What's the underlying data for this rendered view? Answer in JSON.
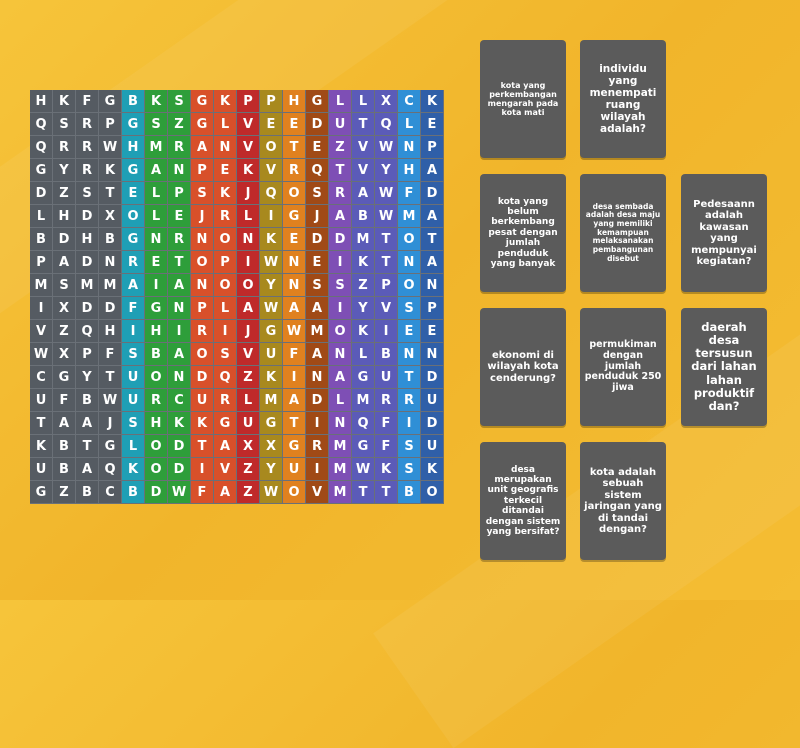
{
  "grid": [
    [
      "H",
      "K",
      "F",
      "G",
      "B",
      "K",
      "S",
      "G",
      "K",
      "P",
      "P",
      "H",
      "G",
      "L",
      "L",
      "X",
      "C",
      "K"
    ],
    [
      "Q",
      "S",
      "R",
      "P",
      "G",
      "S",
      "Z",
      "G",
      "L",
      "V",
      "E",
      "E",
      "D",
      "U",
      "T",
      "Q",
      "L",
      "E"
    ],
    [
      "Q",
      "R",
      "R",
      "W",
      "H",
      "M",
      "R",
      "A",
      "N",
      "V",
      "O",
      "T",
      "E",
      "Z",
      "V",
      "W",
      "N",
      "P"
    ],
    [
      "G",
      "Y",
      "R",
      "K",
      "G",
      "A",
      "N",
      "P",
      "E",
      "K",
      "V",
      "R",
      "Q",
      "T",
      "V",
      "Y",
      "H",
      "A"
    ],
    [
      "D",
      "Z",
      "S",
      "T",
      "E",
      "L",
      "P",
      "S",
      "K",
      "J",
      "Q",
      "O",
      "S",
      "R",
      "A",
      "W",
      "F",
      "D"
    ],
    [
      "L",
      "H",
      "D",
      "X",
      "O",
      "L",
      "E",
      "J",
      "R",
      "L",
      "I",
      "G",
      "J",
      "A",
      "B",
      "W",
      "M",
      "A"
    ],
    [
      "B",
      "D",
      "H",
      "B",
      "G",
      "N",
      "R",
      "N",
      "O",
      "N",
      "K",
      "E",
      "D",
      "D",
      "M",
      "T",
      "O",
      "T"
    ],
    [
      "P",
      "A",
      "D",
      "N",
      "R",
      "E",
      "T",
      "O",
      "P",
      "I",
      "W",
      "N",
      "E",
      "I",
      "K",
      "T",
      "N",
      "A"
    ],
    [
      "M",
      "S",
      "M",
      "M",
      "A",
      "I",
      "A",
      "N",
      "O",
      "O",
      "Y",
      "N",
      "S",
      "S",
      "Z",
      "P",
      "O",
      "N"
    ],
    [
      "I",
      "X",
      "D",
      "D",
      "F",
      "G",
      "N",
      "P",
      "L",
      "A",
      "W",
      "A",
      "A",
      "I",
      "Y",
      "V",
      "S",
      "P"
    ],
    [
      "V",
      "Z",
      "Q",
      "H",
      "I",
      "H",
      "I",
      "R",
      "I",
      "J",
      "G",
      "W",
      "M",
      "O",
      "K",
      "I",
      "E",
      "E"
    ],
    [
      "W",
      "X",
      "P",
      "F",
      "S",
      "B",
      "A",
      "O",
      "S",
      "V",
      "U",
      "F",
      "A",
      "N",
      "L",
      "B",
      "N",
      "N"
    ],
    [
      "C",
      "G",
      "Y",
      "T",
      "U",
      "O",
      "N",
      "D",
      "Q",
      "Z",
      "K",
      "I",
      "N",
      "A",
      "G",
      "U",
      "T",
      "D"
    ],
    [
      "U",
      "F",
      "B",
      "W",
      "U",
      "R",
      "C",
      "U",
      "R",
      "L",
      "M",
      "A",
      "D",
      "L",
      "M",
      "R",
      "R",
      "U"
    ],
    [
      "T",
      "A",
      "A",
      "J",
      "S",
      "H",
      "K",
      "K",
      "G",
      "U",
      "G",
      "T",
      "I",
      "N",
      "Q",
      "F",
      "I",
      "D"
    ],
    [
      "K",
      "B",
      "T",
      "G",
      "L",
      "O",
      "D",
      "T",
      "A",
      "X",
      "X",
      "G",
      "R",
      "M",
      "G",
      "F",
      "S",
      "U"
    ],
    [
      "U",
      "B",
      "A",
      "Q",
      "K",
      "O",
      "D",
      "I",
      "V",
      "Z",
      "Y",
      "U",
      "I",
      "M",
      "W",
      "K",
      "S",
      "K"
    ],
    [
      "G",
      "Z",
      "B",
      "C",
      "B",
      "D",
      "W",
      "F",
      "A",
      "Z",
      "W",
      "O",
      "V",
      "M",
      "T",
      "T",
      "B",
      "O"
    ]
  ],
  "column_colors": [
    "#555b62",
    "#555b62",
    "#555b62",
    "#555b62",
    "#1f9fb5",
    "#2e9e3a",
    "#2e9e3a",
    "#d8502a",
    "#d8502a",
    "#bf2a2a",
    "#a8891e",
    "#e0811f",
    "#a04a16",
    "#7e4fb5",
    "#5b5bb8",
    "#5b5bb8",
    "#2f8fd6",
    "#2f5fa8"
  ],
  "cards": [
    {
      "id": "kota-mati",
      "text": "kota yang perkembangan mengarah pada kota mati"
    },
    {
      "id": "individu",
      "text": "individu yang menempati ruang wilayah adalah?"
    },
    {
      "id": "kota-belum-berkembang",
      "text": "kota yang belum berkembang pesat dengan jumlah penduduk yang banyak"
    },
    {
      "id": "desa-sembada",
      "text": "desa sembada adalah desa maju yang memiliki kemampuan melaksanakan pembangunan disebut"
    },
    {
      "id": "pedesaan",
      "text": "Pedesaann adalah kawasan yang mempunyai kegiatan?"
    },
    {
      "id": "ekonomi",
      "text": "ekonomi di wilayah kota cenderung?"
    },
    {
      "id": "permukiman",
      "text": "permukiman dengan jumlah penduduk 250 jiwa"
    },
    {
      "id": "daerah-desa",
      "text": "daerah desa tersusun dari lahan lahan produktif dan?"
    },
    {
      "id": "desa-unit",
      "text": "desa merupakan unit geografis terkecil ditandai dengan sistem yang bersifat?"
    },
    {
      "id": "kota-sistem",
      "text": "kota adalah sebuah sistem jaringan yang di tandai dengan?"
    }
  ]
}
